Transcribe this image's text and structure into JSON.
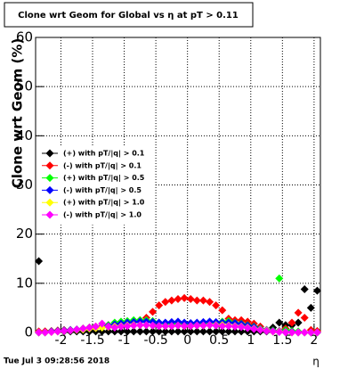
{
  "chart_data": {
    "type": "scatter",
    "title": "Clone wrt Geom for Global vs  η at pT > 0.11",
    "y_label": "Clone wrt Geom (%)",
    "x_label": "η",
    "timestamp": "Tue Jul  3 09:28:56 2018",
    "xlim": [
      -2.4,
      2.1
    ],
    "xticks": [
      -2,
      -1.5,
      -1,
      -0.5,
      0,
      0.5,
      1,
      1.5,
      2
    ],
    "ylim": [
      0,
      60
    ],
    "yticks": [
      0,
      10,
      20,
      30,
      40,
      50,
      60
    ],
    "grid": true,
    "legend": "left",
    "x": [
      -2.35,
      -2.25,
      -2.15,
      -2.05,
      -1.95,
      -1.85,
      -1.75,
      -1.65,
      -1.55,
      -1.45,
      -1.35,
      -1.25,
      -1.15,
      -1.05,
      -0.95,
      -0.85,
      -0.75,
      -0.65,
      -0.55,
      -0.45,
      -0.35,
      -0.25,
      -0.15,
      -0.05,
      0.05,
      0.15,
      0.25,
      0.35,
      0.45,
      0.55,
      0.65,
      0.75,
      0.85,
      0.95,
      1.05,
      1.15,
      1.25,
      1.35,
      1.45,
      1.55,
      1.65,
      1.75,
      1.85,
      1.95,
      2.05
    ],
    "series": [
      {
        "name": "(+) with pT/|q| > 0.1",
        "color": "#000000",
        "values": [
          14.5,
          0.2,
          0.2,
          0.2,
          0.2,
          0.2,
          0.2,
          0.2,
          0.2,
          0.2,
          0.2,
          0.2,
          0.2,
          0.2,
          0.2,
          0.2,
          0.2,
          0.2,
          0.2,
          0.2,
          0.2,
          0.2,
          0.2,
          0.2,
          0.2,
          0.2,
          0.2,
          0.2,
          0.2,
          0.2,
          0.2,
          0.2,
          0.2,
          0.2,
          0.2,
          0.2,
          0.2,
          1,
          2,
          1.5,
          1.5,
          2,
          8.8,
          5,
          8.5
        ]
      },
      {
        "name": "(-) with pT/|q| > 0.1",
        "color": "#ff0000",
        "values": [
          0.2,
          0.2,
          0.3,
          0.4,
          0.5,
          0.5,
          0.6,
          0.8,
          1,
          1.2,
          1.3,
          1.5,
          1.5,
          1.8,
          2,
          2.2,
          2.5,
          3,
          4.2,
          5.5,
          6.2,
          6.5,
          6.8,
          7,
          6.8,
          6.5,
          6.5,
          6.2,
          5.5,
          4.5,
          2.8,
          2.5,
          2.5,
          2.2,
          1.8,
          1.2,
          0.5,
          0.2,
          0.3,
          0.8,
          2,
          4,
          3,
          0.5,
          0.3
        ]
      },
      {
        "name": "(+) with pT/|q| > 0.5",
        "color": "#00ff00",
        "values": [
          0,
          0,
          0.2,
          0.3,
          0.4,
          0.5,
          0.6,
          0.8,
          1,
          1,
          1.2,
          1.5,
          2,
          2.2,
          2.3,
          2.5,
          2.5,
          2.5,
          2.3,
          2,
          1.8,
          1.8,
          1.8,
          1.6,
          1.7,
          1.8,
          1.8,
          2,
          2,
          2.2,
          2.3,
          2,
          1.8,
          1.5,
          1.2,
          0.8,
          0.5,
          0.4,
          11,
          0.5,
          0.3,
          0.2,
          0,
          0,
          0
        ]
      },
      {
        "name": "(-) with pT/|q| > 0.5",
        "color": "#0000ff",
        "values": [
          0,
          0,
          0.2,
          0.3,
          0.4,
          0.5,
          0.6,
          0.7,
          0.9,
          1,
          1.1,
          1.3,
          1.6,
          1.8,
          2,
          2.1,
          2.2,
          2.2,
          2.1,
          2,
          2,
          2.1,
          2.2,
          2,
          1.9,
          2,
          2.1,
          2.2,
          2.1,
          2,
          2,
          1.9,
          1.7,
          1.4,
          1.1,
          0.7,
          0.5,
          0.3,
          0.3,
          0.2,
          0.1,
          0,
          0,
          0,
          0
        ]
      },
      {
        "name": "(+) with pT/|q| > 1.0",
        "color": "#ffff00",
        "values": [
          0,
          0,
          0.1,
          0.2,
          0.3,
          0.4,
          0.5,
          0.6,
          0.8,
          0.9,
          1,
          1.1,
          1.2,
          1.3,
          1.4,
          1.5,
          1.5,
          1.5,
          1.4,
          1.3,
          1.3,
          1.3,
          1.4,
          1.3,
          1.3,
          1.4,
          1.4,
          1.5,
          1.5,
          1.5,
          1.4,
          1.3,
          1.2,
          1,
          0.8,
          0.6,
          0.4,
          0.2,
          0.2,
          0.1,
          0,
          0,
          0,
          0,
          0
        ]
      },
      {
        "name": "(-) with pT/|q| > 1.0",
        "color": "#ff00ff",
        "values": [
          0,
          0,
          0.1,
          0.2,
          0.3,
          0.4,
          0.6,
          0.8,
          1,
          1.2,
          1.8,
          1.2,
          1,
          1.2,
          1.3,
          1.4,
          1.5,
          1.5,
          1.4,
          1.3,
          1.3,
          1.3,
          1.4,
          1.3,
          1.3,
          1.4,
          1.4,
          1.5,
          1.4,
          1.3,
          1.3,
          1.2,
          1.1,
          0.9,
          0.7,
          0.5,
          0.3,
          0.2,
          0.1,
          0,
          0,
          0,
          0,
          0,
          0
        ]
      }
    ]
  }
}
